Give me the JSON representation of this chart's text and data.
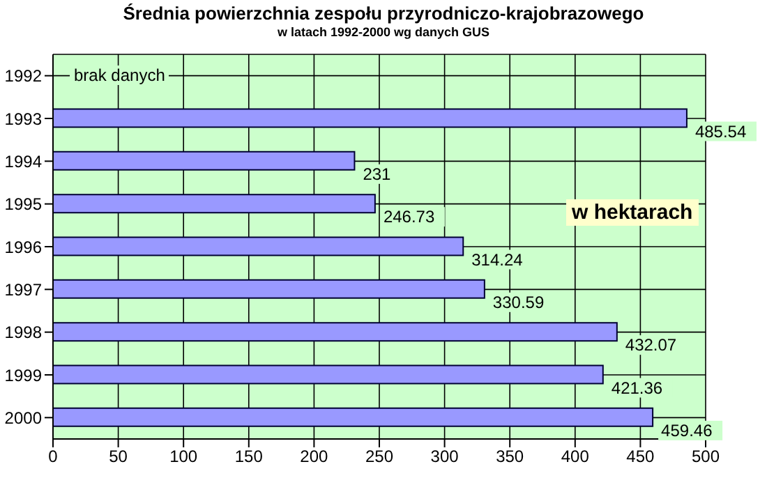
{
  "chart_data": {
    "type": "bar",
    "orientation": "horizontal",
    "title": "Średnia powierzchnia zespołu przyrodniczo-krajobrazowego",
    "subtitle": "w latach 1992-2000 wg danych GUS",
    "categories": [
      "1992",
      "1993",
      "1994",
      "1995",
      "1996",
      "1997",
      "1998",
      "1999",
      "2000"
    ],
    "values": [
      null,
      485.54,
      231,
      246.73,
      314.24,
      330.59,
      432.07,
      421.36,
      459.46
    ],
    "color": "#9999ff",
    "data_labels": true,
    "xlim": [
      0,
      500
    ],
    "xticks": [
      0,
      50,
      100,
      150,
      200,
      250,
      300,
      350,
      400,
      450,
      500
    ],
    "grid": true,
    "annotations": [
      "brak danych",
      "w hektarach"
    ]
  }
}
